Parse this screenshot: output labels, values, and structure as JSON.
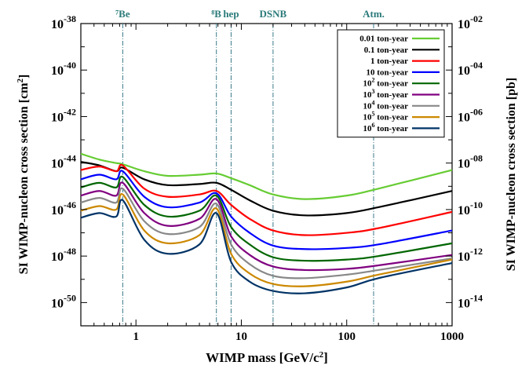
{
  "chart_data": {
    "type": "line",
    "xlabel": "WIMP mass [GeV/c²]",
    "ylabel_left": "SI WIMP-nucleon cross section [cm²]",
    "ylabel_right": "SI WIMP-nucleon cross section [pb]",
    "xscale": "log",
    "yscale": "log",
    "xlim": [
      0.3,
      1000
    ],
    "ylim_cm2": [
      1e-51,
      1e-38
    ],
    "x_ticks": [
      {
        "value": 1,
        "label": "1"
      },
      {
        "value": 10,
        "label": "10"
      },
      {
        "value": 100,
        "label": "100"
      },
      {
        "value": 1000,
        "label": "1000"
      }
    ],
    "y_ticks_left": [
      {
        "exp": -38,
        "base": "10",
        "sup": "-38"
      },
      {
        "exp": -40,
        "base": "10",
        "sup": "-40"
      },
      {
        "exp": -42,
        "base": "10",
        "sup": "-42"
      },
      {
        "exp": -44,
        "base": "10",
        "sup": "-44"
      },
      {
        "exp": -46,
        "base": "10",
        "sup": "-46"
      },
      {
        "exp": -48,
        "base": "10",
        "sup": "-48"
      },
      {
        "exp": -50,
        "base": "10",
        "sup": "-50"
      }
    ],
    "y_ticks_right": [
      {
        "exp": -38,
        "base": "10",
        "sup": "-02"
      },
      {
        "exp": -40,
        "base": "10",
        "sup": "-04"
      },
      {
        "exp": -42,
        "base": "10",
        "sup": "-06"
      },
      {
        "exp": -44,
        "base": "10",
        "sup": "-08"
      },
      {
        "exp": -46,
        "base": "10",
        "sup": "-10"
      },
      {
        "exp": -48,
        "base": "10",
        "sup": "-12"
      },
      {
        "exp": -50,
        "base": "10",
        "sup": "-14"
      }
    ],
    "neutrino_sources": [
      {
        "label": "⁷Be",
        "mass": 0.75
      },
      {
        "label": "⁸B",
        "mass": 5.8
      },
      {
        "label": "hep",
        "mass": 8.0
      },
      {
        "label": "DSNB",
        "mass": 20
      },
      {
        "label": "Atm.",
        "mass": 180
      }
    ],
    "legend_position": "top-right",
    "series": [
      {
        "name": "0.01 ton-year",
        "exposure": "0.01",
        "sup": "",
        "color": "#66cc33",
        "x": [
          0.3,
          0.45,
          0.65,
          0.75,
          1.2,
          2,
          4,
          5.8,
          8,
          12,
          20,
          40,
          100,
          200,
          1000
        ],
        "y_log10": [
          -43.6,
          -43.85,
          -44.0,
          -44.05,
          -44.35,
          -44.55,
          -44.5,
          -44.45,
          -44.65,
          -44.95,
          -45.35,
          -45.55,
          -45.4,
          -45.1,
          -44.3
        ]
      },
      {
        "name": "0.1 ton-year",
        "exposure": "0.1",
        "sup": "",
        "color": "#000000",
        "x": [
          0.3,
          0.45,
          0.65,
          0.75,
          1.2,
          2,
          4,
          5.8,
          8,
          12,
          20,
          40,
          100,
          200,
          1000
        ],
        "y_log10": [
          -43.95,
          -44.1,
          -44.35,
          -44.2,
          -44.7,
          -44.95,
          -44.9,
          -44.85,
          -45.15,
          -45.6,
          -46.05,
          -46.25,
          -46.15,
          -45.9,
          -45.2
        ]
      },
      {
        "name": "1 ton-year",
        "exposure": "1",
        "sup": "",
        "color": "#ff0000",
        "x": [
          0.3,
          0.45,
          0.65,
          0.75,
          1.2,
          2,
          4,
          5.8,
          8,
          12,
          20,
          40,
          100,
          200,
          1000
        ],
        "y_log10": [
          -44.3,
          -44.15,
          -44.35,
          -44.1,
          -45.1,
          -45.45,
          -45.35,
          -45.2,
          -45.8,
          -46.4,
          -46.9,
          -47.1,
          -47.0,
          -46.8,
          -46.1
        ]
      },
      {
        "name": "10 ton-year",
        "exposure": "10",
        "sup": "",
        "color": "#0000ff",
        "x": [
          0.3,
          0.45,
          0.65,
          0.75,
          1.2,
          2,
          4,
          5.8,
          8,
          12,
          20,
          40,
          100,
          200,
          1000
        ],
        "y_log10": [
          -44.7,
          -44.5,
          -44.7,
          -44.35,
          -45.45,
          -45.9,
          -45.7,
          -45.3,
          -46.3,
          -47.0,
          -47.55,
          -47.7,
          -47.65,
          -47.5,
          -46.9
        ]
      },
      {
        "name": "10² ton-year",
        "exposure": "10",
        "sup": "2",
        "color": "#006600",
        "x": [
          0.3,
          0.45,
          0.65,
          0.75,
          1.2,
          2,
          4,
          5.8,
          8,
          12,
          20,
          40,
          100,
          200,
          1000
        ],
        "y_log10": [
          -45.05,
          -44.85,
          -45.05,
          -44.6,
          -45.8,
          -46.3,
          -46.05,
          -45.4,
          -46.75,
          -47.5,
          -48.05,
          -48.2,
          -48.15,
          -48.0,
          -47.45
        ]
      },
      {
        "name": "10³ ton-year",
        "exposure": "10",
        "sup": "3",
        "color": "#800080",
        "x": [
          0.3,
          0.45,
          0.65,
          0.75,
          1.2,
          2,
          4,
          5.8,
          8,
          12,
          20,
          40,
          100,
          200,
          1000
        ],
        "y_log10": [
          -45.4,
          -45.2,
          -45.4,
          -44.85,
          -46.15,
          -46.7,
          -46.4,
          -45.55,
          -47.15,
          -47.95,
          -48.45,
          -48.6,
          -48.55,
          -48.4,
          -47.95
        ]
      },
      {
        "name": "10⁴ ton-year",
        "exposure": "10",
        "sup": "4",
        "color": "#888888",
        "x": [
          0.3,
          0.45,
          0.65,
          0.75,
          1.2,
          2,
          4,
          5.8,
          8,
          12,
          20,
          40,
          100,
          200,
          1000
        ],
        "y_log10": [
          -45.7,
          -45.5,
          -45.7,
          -45.1,
          -46.5,
          -47.05,
          -46.75,
          -45.75,
          -47.5,
          -48.35,
          -48.85,
          -48.95,
          -48.8,
          -48.6,
          -48.1
        ]
      },
      {
        "name": "10⁵ ton-year",
        "exposure": "10",
        "sup": "5",
        "color": "#cc8800",
        "x": [
          0.3,
          0.45,
          0.65,
          0.75,
          1.2,
          2,
          4,
          5.8,
          8,
          12,
          20,
          40,
          100,
          200,
          1000
        ],
        "y_log10": [
          -46.05,
          -45.85,
          -46.0,
          -45.35,
          -46.9,
          -47.45,
          -47.1,
          -45.95,
          -47.9,
          -48.75,
          -49.2,
          -49.3,
          -49.1,
          -48.8,
          -48.15
        ]
      },
      {
        "name": "10⁶ ton-year",
        "exposure": "10",
        "sup": "6",
        "color": "#003366",
        "x": [
          0.3,
          0.45,
          0.65,
          0.75,
          1.2,
          2,
          4,
          5.8,
          8,
          12,
          20,
          40,
          100,
          200,
          1000
        ],
        "y_log10": [
          -46.35,
          -46.15,
          -46.3,
          -45.6,
          -47.3,
          -47.9,
          -47.5,
          -46.15,
          -48.25,
          -49.1,
          -49.5,
          -49.6,
          -49.35,
          -48.95,
          -48.3
        ]
      }
    ]
  }
}
